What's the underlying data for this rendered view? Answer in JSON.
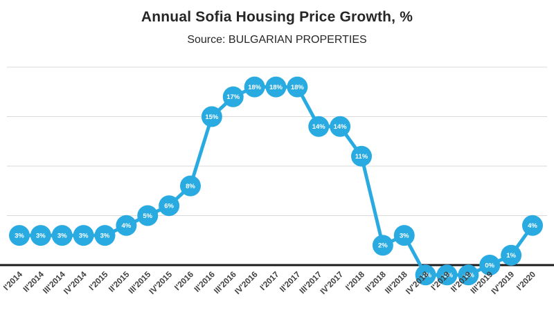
{
  "chart_data": {
    "type": "line",
    "title": "Annual Sofia Housing Price Growth, %",
    "subtitle": "Source: BULGARIAN PROPERTIES",
    "categories": [
      "I'2014",
      "II'2014",
      "III'2014",
      "IV'2014",
      "I'2015",
      "II'2015",
      "III'2015",
      "IV'2015",
      "I'2016",
      "II'2016",
      "III'2016",
      "IV'2016",
      "I'2017",
      "II'2017",
      "III'2017",
      "IV'2017",
      "I'2018",
      "II'2018",
      "III'2018",
      "IV'2018",
      "I'2019",
      "II'2019",
      "III'2019",
      "IV'2019",
      "I'2020"
    ],
    "values": [
      3,
      3,
      3,
      3,
      3,
      4,
      5,
      6,
      8,
      15,
      17,
      18,
      18,
      18,
      14,
      14,
      11,
      2,
      3,
      -1,
      -1,
      -1,
      0,
      1,
      4
    ],
    "point_labels": [
      "3%",
      "3%",
      "3%",
      "3%",
      "3%",
      "4%",
      "5%",
      "6%",
      "8%",
      "15%",
      "17%",
      "18%",
      "18%",
      "18%",
      "14%",
      "14%",
      "11%",
      "2%",
      "3%",
      "-1%",
      "-1%",
      "-1%",
      "0%",
      "1%",
      "4%"
    ],
    "xlabel": "",
    "ylabel": "",
    "ylim": [
      -5,
      22
    ],
    "gridline_values": [
      20,
      15,
      10,
      5
    ],
    "zero_line_value": 0,
    "grid": true,
    "legend_position": "none",
    "colors": {
      "line": "#29abe2",
      "marker": "#29abe2",
      "marker_label": "#ffffff",
      "gridline": "#d9d9d9",
      "zero_line": "#1a1a1a",
      "axis_label": "#404040",
      "title": "#262626"
    }
  }
}
